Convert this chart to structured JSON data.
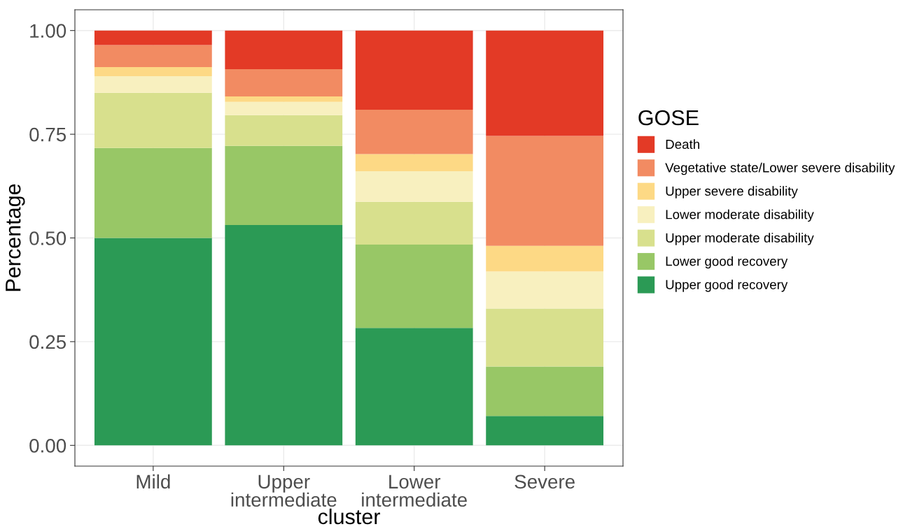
{
  "chart_data": {
    "type": "bar",
    "stacked": true,
    "xlabel": "cluster",
    "ylabel": "Percentage",
    "legend_title": "GOSE",
    "legend": "right",
    "grid": true,
    "categories": [
      "Mild",
      "Upper\nintermediate",
      "Lower\nintermediate",
      "Severe"
    ],
    "ylim": [
      -0.05,
      1.05
    ],
    "yticks": [
      {
        "value": 0,
        "label": "0.00"
      },
      {
        "value": 0.25,
        "label": "0.25"
      },
      {
        "value": 0.5,
        "label": "0.50"
      },
      {
        "value": 0.75,
        "label": "0.75"
      },
      {
        "value": 1,
        "label": "1.00"
      }
    ],
    "series": [
      {
        "name": "Upper good recovery",
        "color": "#2b9a55",
        "values": [
          0.5,
          0.531,
          0.283,
          0.071
        ]
      },
      {
        "name": "Lower good recovery",
        "color": "#98c766",
        "values": [
          0.217,
          0.191,
          0.201,
          0.119
        ]
      },
      {
        "name": "Upper moderate disability",
        "color": "#d8e08d",
        "values": [
          0.133,
          0.074,
          0.103,
          0.14
        ]
      },
      {
        "name": "Lower moderate disability",
        "color": "#f8f0bf",
        "values": [
          0.04,
          0.032,
          0.074,
          0.089
        ]
      },
      {
        "name": "Upper severe disability",
        "color": "#fdd985",
        "values": [
          0.022,
          0.013,
          0.041,
          0.062
        ]
      },
      {
        "name": "Vegetative state/Lower severe disability",
        "color": "#f28b62",
        "values": [
          0.053,
          0.066,
          0.107,
          0.265
        ]
      },
      {
        "name": "Death",
        "color": "#e33a26",
        "values": [
          0.035,
          0.093,
          0.191,
          0.254
        ]
      }
    ]
  }
}
